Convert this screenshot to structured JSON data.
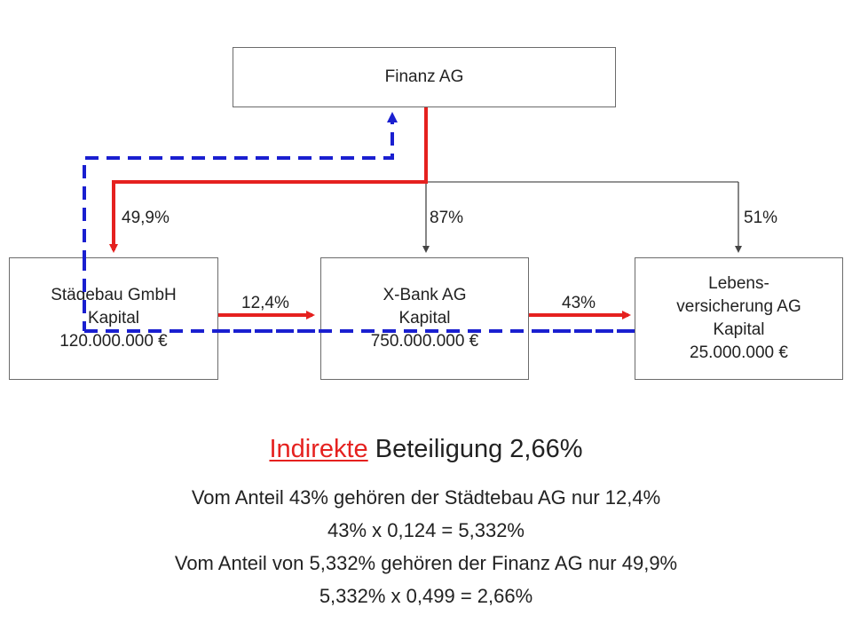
{
  "nodes": {
    "finanz": {
      "lines": [
        "Finanz AG"
      ]
    },
    "staedtebau": {
      "lines": [
        "Städebau GmbH",
        "Kapital",
        "120.000.000 €"
      ]
    },
    "xbank": {
      "lines": [
        "X-Bank AG",
        "Kapital",
        "750.000.000 €"
      ]
    },
    "lebens": {
      "lines": [
        "Lebens-",
        "versicherung AG",
        "Kapital",
        "25.000.000 €"
      ]
    }
  },
  "edges": {
    "finanz_staedtebau": "49,9%",
    "finanz_xbank": "87%",
    "finanz_lebens": "51%",
    "staedtebau_xbank": "12,4%",
    "xbank_lebens": "43%"
  },
  "summary": {
    "heading_accent": "Indirekte",
    "heading_rest": " Beteiligung 2,66%",
    "lines": [
      "Vom Anteil 43% gehören der Städtebau AG nur 12,4%",
      "43% x 0,124 = 5,332%",
      "Vom Anteil von 5,332% gehören der Finanz AG nur 49,9%",
      "5,332% x 0,499 = 2,66%"
    ]
  },
  "colors": {
    "ownership_path": "#e5211f",
    "indirect_path": "#1a1fd0",
    "connector": "#555555"
  }
}
